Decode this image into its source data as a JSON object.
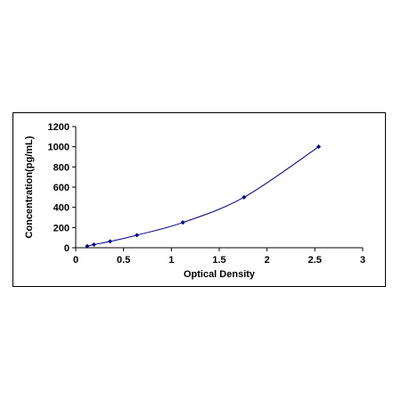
{
  "chart_data": {
    "type": "scatter",
    "title": "",
    "xlabel": "Optical Density",
    "ylabel": "Concentration(pg/mL)",
    "xlim": [
      0,
      3
    ],
    "ylim": [
      0,
      1200
    ],
    "x_ticks": [
      "0",
      "0.5",
      "1",
      "1.5",
      "2",
      "2.5",
      "3"
    ],
    "y_ticks": [
      "0",
      "200",
      "400",
      "600",
      "800",
      "1000",
      "1200"
    ],
    "grid": false,
    "legend": "none",
    "series": [
      {
        "points": [
          {
            "x": 0.12,
            "y": 15.6
          },
          {
            "x": 0.19,
            "y": 31.2
          },
          {
            "x": 0.36,
            "y": 62.5
          },
          {
            "x": 0.64,
            "y": 125
          },
          {
            "x": 1.12,
            "y": 250
          },
          {
            "x": 1.76,
            "y": 500
          },
          {
            "x": 2.54,
            "y": 1000
          }
        ],
        "color": "#00008B",
        "curve": "smooth fit"
      }
    ]
  }
}
